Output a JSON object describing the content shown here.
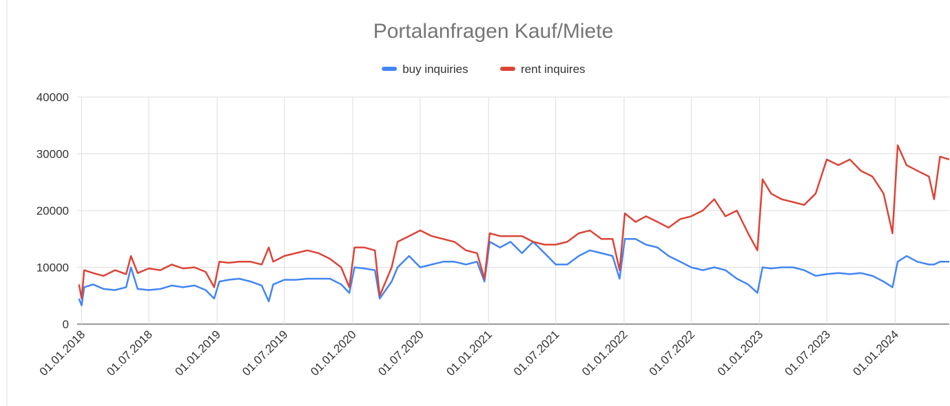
{
  "chart_data": {
    "type": "line",
    "title": "Portalanfragen Kauf/Miete",
    "x": [
      "2017-12-25",
      "2018-01-01",
      "2018-01-08",
      "2018-02-01",
      "2018-03-01",
      "2018-04-01",
      "2018-05-01",
      "2018-05-14",
      "2018-06-01",
      "2018-07-01",
      "2018-08-01",
      "2018-09-01",
      "2018-10-01",
      "2018-11-01",
      "2018-12-01",
      "2018-12-24",
      "2019-01-07",
      "2019-02-01",
      "2019-03-01",
      "2019-04-01",
      "2019-05-01",
      "2019-05-20",
      "2019-06-01",
      "2019-07-01",
      "2019-08-01",
      "2019-09-01",
      "2019-10-01",
      "2019-11-01",
      "2019-12-01",
      "2019-12-23",
      "2020-01-06",
      "2020-02-01",
      "2020-03-01",
      "2020-03-14",
      "2020-04-15",
      "2020-05-01",
      "2020-06-01",
      "2020-07-01",
      "2020-08-01",
      "2020-09-01",
      "2020-10-01",
      "2020-11-01",
      "2020-12-01",
      "2020-12-21",
      "2021-01-04",
      "2021-02-01",
      "2021-03-01",
      "2021-04-01",
      "2021-05-01",
      "2021-06-01",
      "2021-07-01",
      "2021-08-01",
      "2021-09-01",
      "2021-10-01",
      "2021-11-01",
      "2021-12-01",
      "2021-12-20",
      "2022-01-03",
      "2022-02-01",
      "2022-03-01",
      "2022-04-01",
      "2022-05-01",
      "2022-06-01",
      "2022-07-01",
      "2022-08-01",
      "2022-09-01",
      "2022-10-01",
      "2022-11-01",
      "2022-12-01",
      "2022-12-26",
      "2023-01-09",
      "2023-02-01",
      "2023-03-01",
      "2023-04-01",
      "2023-05-01",
      "2023-06-01",
      "2023-07-01",
      "2023-08-01",
      "2023-09-01",
      "2023-10-01",
      "2023-11-01",
      "2023-12-01",
      "2023-12-25",
      "2024-01-08",
      "2024-02-01",
      "2024-03-01",
      "2024-04-01",
      "2024-04-15",
      "2024-05-01",
      "2024-05-26"
    ],
    "series": [
      {
        "name": "buy inquiries",
        "color": "#4285f4",
        "values": [
          4500,
          3300,
          6500,
          7000,
          6200,
          6000,
          6500,
          10000,
          6200,
          6000,
          6200,
          6800,
          6500,
          6800,
          6000,
          4500,
          7500,
          7800,
          8000,
          7500,
          6800,
          4000,
          7000,
          7800,
          7800,
          8000,
          8000,
          8000,
          7000,
          5500,
          10000,
          9800,
          9500,
          4500,
          7500,
          10000,
          12000,
          10000,
          10500,
          11000,
          11000,
          10500,
          11000,
          7500,
          14500,
          13500,
          14500,
          12500,
          14500,
          12500,
          10500,
          10500,
          12000,
          13000,
          12500,
          12000,
          8000,
          15000,
          15000,
          14000,
          13500,
          12000,
          11000,
          10000,
          9500,
          10000,
          9500,
          8000,
          7000,
          5500,
          10000,
          9800,
          10000,
          10000,
          9500,
          8500,
          8800,
          9000,
          8800,
          9000,
          8500,
          7500,
          6500,
          11000,
          12000,
          11000,
          10500,
          10500,
          11000,
          11000
        ]
      },
      {
        "name": "rent inquires",
        "color": "#db4437",
        "values": [
          7000,
          4500,
          9500,
          9000,
          8500,
          9500,
          8800,
          12000,
          9000,
          9800,
          9500,
          10500,
          9800,
          10000,
          9200,
          6500,
          11000,
          10800,
          11000,
          11000,
          10500,
          13500,
          11000,
          12000,
          12500,
          13000,
          12500,
          11500,
          10000,
          6500,
          13500,
          13500,
          13000,
          5000,
          10000,
          14500,
          15500,
          16500,
          15500,
          15000,
          14500,
          13000,
          12500,
          8000,
          16000,
          15500,
          15500,
          15500,
          14500,
          14000,
          14000,
          14500,
          16000,
          16500,
          15000,
          15000,
          9500,
          19500,
          18000,
          19000,
          18000,
          17000,
          18500,
          19000,
          20000,
          22000,
          19000,
          20000,
          16000,
          13000,
          25500,
          23000,
          22000,
          21500,
          21000,
          23000,
          29000,
          28000,
          29000,
          27000,
          26000,
          23000,
          16000,
          31500,
          28000,
          27000,
          26000,
          22000,
          29500,
          29000
        ]
      }
    ],
    "xlim": [
      "2017-12-20",
      "2024-05-26"
    ],
    "xticks": [
      {
        "value": "2018-01-01",
        "label": "01.01.2018"
      },
      {
        "value": "2018-07-01",
        "label": "01.07.2018"
      },
      {
        "value": "2019-01-01",
        "label": "01.01.2019"
      },
      {
        "value": "2019-07-01",
        "label": "01.07.2019"
      },
      {
        "value": "2020-01-01",
        "label": "01.01.2020"
      },
      {
        "value": "2020-07-01",
        "label": "01.07.2020"
      },
      {
        "value": "2021-01-01",
        "label": "01.01.2021"
      },
      {
        "value": "2021-07-01",
        "label": "01.07.2021"
      },
      {
        "value": "2022-01-01",
        "label": "01.01.2022"
      },
      {
        "value": "2022-07-01",
        "label": "01.07.2022"
      },
      {
        "value": "2023-01-01",
        "label": "01.01.2023"
      },
      {
        "value": "2023-07-01",
        "label": "01.07.2023"
      },
      {
        "value": "2024-01-01",
        "label": "01.01.2024"
      }
    ],
    "ylim": [
      0,
      40000
    ],
    "yticks": [
      0,
      10000,
      20000,
      30000,
      40000
    ],
    "grid": true,
    "legend": "top"
  }
}
